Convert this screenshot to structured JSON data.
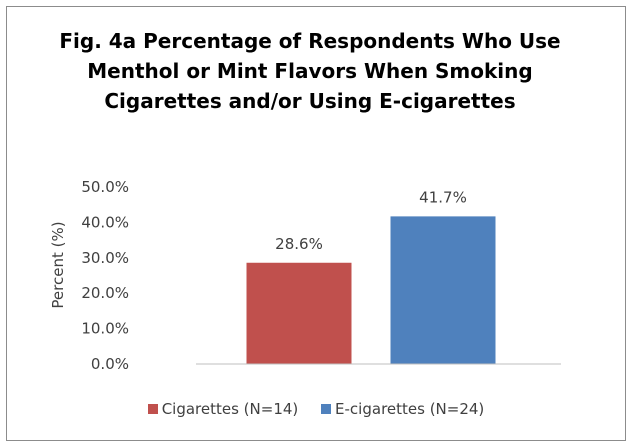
{
  "chart_data": {
    "type": "bar",
    "title_lines": [
      "Fig. 4a Percentage of Respondents Who Use",
      "Menthol or Mint Flavors When Smoking",
      "Cigarettes and/or Using E-cigarettes"
    ],
    "xlabel": "",
    "ylabel": "Percent (%)",
    "ylim": [
      0,
      50
    ],
    "y_ticks": [
      "0.0%",
      "10.0%",
      "20.0%",
      "30.0%",
      "40.0%",
      "50.0%"
    ],
    "grid": false,
    "legend_position": "bottom",
    "series": [
      {
        "name": "Cigarettes (N=14)",
        "value": 28.6,
        "label": "28.6%",
        "color": "#c0504d"
      },
      {
        "name": "E-cigarettes (N=24)",
        "value": 41.7,
        "label": "41.7%",
        "color": "#4f81bd"
      }
    ]
  }
}
